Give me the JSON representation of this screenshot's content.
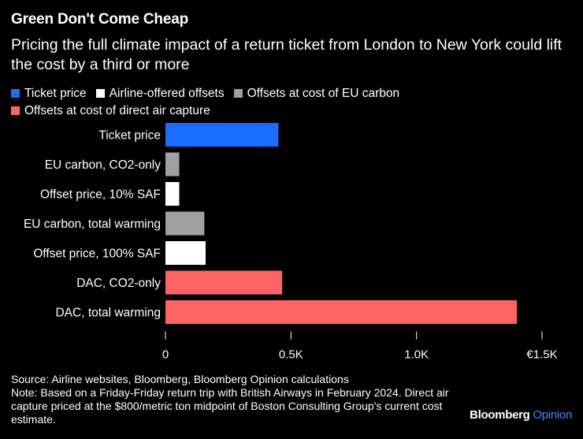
{
  "title": "Green Don't Come Cheap",
  "subtitle": "Pricing the full climate impact of a return ticket from London to New York could lift the cost by a third or more",
  "legend": [
    {
      "label": "Ticket price",
      "color": "#1a6dff"
    },
    {
      "label": "Airline-offered offsets",
      "color": "#ffffff"
    },
    {
      "label": "Offsets at cost of EU carbon",
      "color": "#a0a0a0"
    },
    {
      "label": "Offsets at cost of direct air capture",
      "color": "#ff6464"
    }
  ],
  "chart_data": {
    "type": "bar",
    "orientation": "horizontal",
    "title": "Green Don't Come Cheap",
    "categories": [
      "Ticket price",
      "EU carbon, CO2-only",
      "Offset price, 10% SAF",
      "EU carbon, total warming",
      "Offset price, 100% SAF",
      "DAC, CO2-only",
      "DAC, total warming"
    ],
    "values": [
      450,
      55,
      55,
      155,
      160,
      465,
      1400
    ],
    "series_of_bar": [
      "Ticket price",
      "Offsets at cost of EU carbon",
      "Airline-offered offsets",
      "Offsets at cost of EU carbon",
      "Airline-offered offsets",
      "Offsets at cost of direct air capture",
      "Offsets at cost of direct air capture"
    ],
    "xlim": [
      0,
      1500
    ],
    "xticks": [
      0,
      500,
      1000,
      1500
    ],
    "xtick_labels": [
      "0",
      "0.5K",
      "1.0K",
      "€1.5K"
    ],
    "xlabel": "",
    "ylabel": "",
    "grid": false
  },
  "footnote": {
    "source": "Source: Airline websites, Bloomberg, Bloomberg Opinion calculations",
    "note": "Note: Based on a Friday-Friday return trip with British Airways in February 2024. Direct air capture priced at the $800/metric ton midpoint of Boston Consulting Group's current cost estimate."
  },
  "brand": {
    "name": "Bloomberg",
    "section": "Opinion"
  }
}
